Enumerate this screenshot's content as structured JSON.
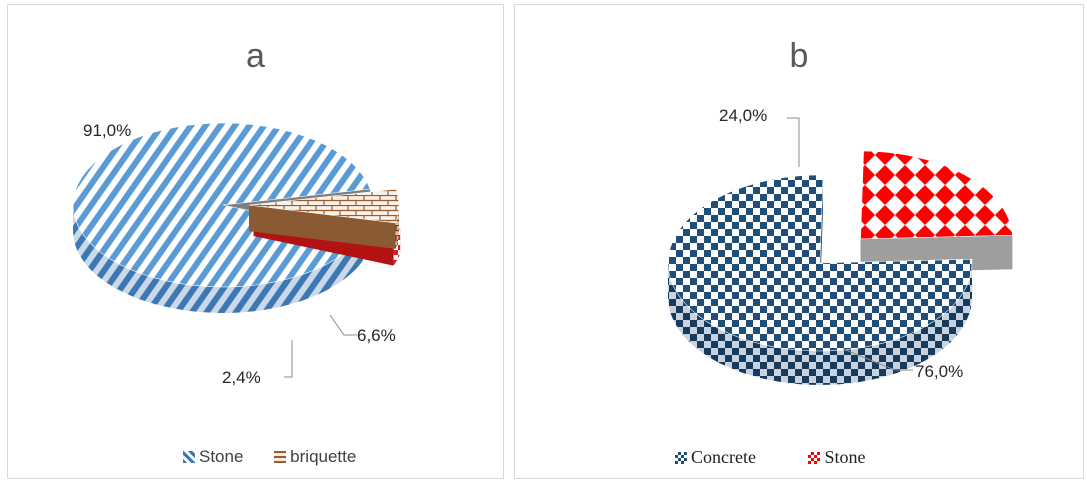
{
  "chart_data": [
    {
      "type": "pie",
      "title": "a",
      "categories": [
        "Stone",
        "briquette",
        ""
      ],
      "values": [
        91.0,
        6.6,
        2.4
      ],
      "data_labels": [
        "91,0%",
        "6,6%",
        "2,4%"
      ],
      "legend": [
        "Stone",
        "briquette"
      ],
      "legend_position": "bottom",
      "style": "3d-exploded",
      "colors": [
        "#4f8fcf",
        "#b5764a",
        "#e02020"
      ]
    },
    {
      "type": "pie",
      "title": "b",
      "categories": [
        "Concrete",
        "Stone"
      ],
      "values": [
        76.0,
        24.0
      ],
      "data_labels": [
        "76,0%",
        "24,0%"
      ],
      "legend": [
        "Concrete",
        "Stone"
      ],
      "legend_position": "bottom",
      "style": "3d-exploded",
      "colors": [
        "#1f4e79",
        "#ff0000"
      ]
    }
  ]
}
